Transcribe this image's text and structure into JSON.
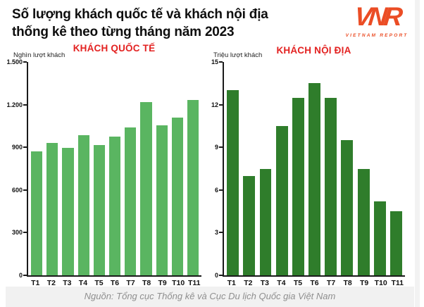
{
  "header": {
    "title_line1": "Số lượng khách quốc tế và khách nội địa",
    "title_line2": "thống kê theo từng tháng năm 2023",
    "logo_text": "VNR",
    "logo_subtext": "VIETNAM REPORT"
  },
  "footer": {
    "source": "Nguồn: Tổng cục Thống kê và Cục Du lịch Quốc gia Việt Nam"
  },
  "colors": {
    "international_bar": "#5ab561",
    "domestic_bar": "#2f7d2b",
    "chart_title_red": "#e32221",
    "logo_orange": "#eb4d25",
    "footer_bg": "#f1f1f1"
  },
  "chart_data": [
    {
      "type": "bar",
      "title": "KHÁCH QUỐC TẾ",
      "ylabel": "Nghìn lượt khách",
      "xlabel": "",
      "categories": [
        "T1",
        "T2",
        "T3",
        "T4",
        "T5",
        "T6",
        "T7",
        "T8",
        "T9",
        "T10",
        "T11"
      ],
      "values": [
        871,
        933,
        895,
        984,
        916,
        975,
        1039,
        1217,
        1054,
        1110,
        1232
      ],
      "ylim": [
        0,
        1500
      ],
      "yticks": [
        "0",
        "300",
        "600",
        "900",
        "1.200",
        "1.500"
      ],
      "grid": false,
      "legend_position": "none",
      "bar_color": "#5ab561"
    },
    {
      "type": "bar",
      "title": "KHÁCH NỘI ĐỊA",
      "ylabel": "Triệu lượt khách",
      "xlabel": "",
      "categories": [
        "T1",
        "T2",
        "T3",
        "T4",
        "T5",
        "T6",
        "T7",
        "T8",
        "T9",
        "T10",
        "T11"
      ],
      "values": [
        13,
        7,
        7.5,
        10.5,
        12.5,
        13.5,
        12.5,
        9.5,
        7.5,
        5.2,
        4.5
      ],
      "ylim": [
        0,
        15
      ],
      "yticks": [
        "0",
        "3",
        "6",
        "9",
        "12",
        "15"
      ],
      "grid": false,
      "legend_position": "none",
      "bar_color": "#2f7d2b"
    }
  ]
}
